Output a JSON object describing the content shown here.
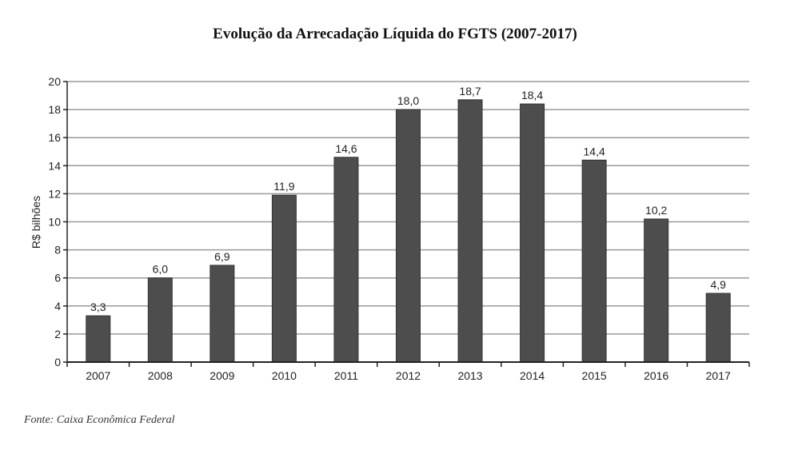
{
  "chart_data": {
    "type": "bar",
    "title": "Evolução da Arrecadação Líquida do FGTS (2007-2017)",
    "xlabel": "",
    "ylabel": "R$ bilhões",
    "categories": [
      "2007",
      "2008",
      "2009",
      "2010",
      "2011",
      "2012",
      "2013",
      "2014",
      "2015",
      "2016",
      "2017"
    ],
    "values": [
      3.3,
      6.0,
      6.9,
      11.9,
      14.6,
      18.0,
      18.7,
      18.4,
      14.4,
      10.2,
      4.9
    ],
    "data_labels": [
      "3,3",
      "6,0",
      "6,9",
      "11,9",
      "14,6",
      "18,0",
      "18,7",
      "18,4",
      "14,4",
      "10,2",
      "4,9"
    ],
    "ylim": [
      0,
      20
    ],
    "yticks": [
      "0",
      "2",
      "4",
      "6",
      "8",
      "10",
      "12",
      "14",
      "16",
      "18",
      "20"
    ],
    "grid": true,
    "bar_color": "#4d4d4d",
    "source": "Fonte: Caixa Econômica Federal"
  }
}
